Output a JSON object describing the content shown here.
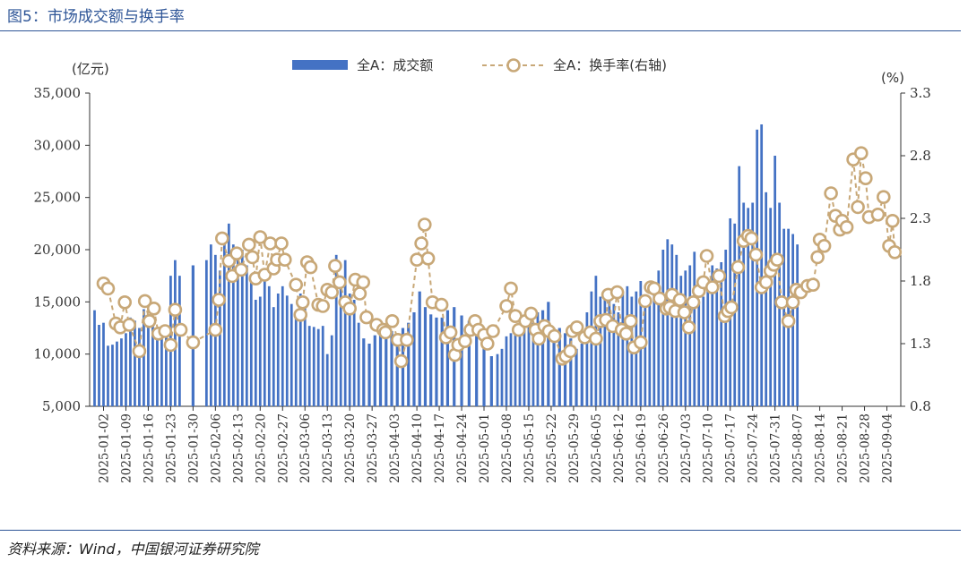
{
  "header": {
    "title": "图5：市场成交额与换手率"
  },
  "footer": {
    "source": "资料来源：Wind，中国银河证券研究院"
  },
  "colors": {
    "bar": "#4472c4",
    "line": "#c8a878",
    "marker_fill": "#ffffff",
    "axis": "#333333",
    "rule": "#2e5597"
  },
  "chart_data": {
    "type": "bar",
    "title": "",
    "left_unit": "(亿元)",
    "right_unit": "(%)",
    "legend": {
      "placement": "top-center",
      "bar_label": "全A：成交额",
      "line_label": "全A：换手率(右轴)"
    },
    "y_left": {
      "min": 5000,
      "max": 35000,
      "ticks": [
        "5,000",
        "10,000",
        "15,000",
        "20,000",
        "25,000",
        "30,000",
        "35,000"
      ]
    },
    "y_right": {
      "min": 0.8,
      "max": 3.3,
      "ticks": [
        "0.8",
        "1.3",
        "1.8",
        "2.3",
        "2.8",
        "3.3"
      ]
    },
    "x_ticks": [
      "2025-01-02",
      "2025-01-09",
      "2025-01-16",
      "2025-01-23",
      "2025-01-30",
      "2025-02-06",
      "2025-02-13",
      "2025-02-20",
      "2025-02-27",
      "2025-03-06",
      "2025-03-13",
      "2025-03-20",
      "2025-03-27",
      "2025-04-03",
      "2025-04-10",
      "2025-04-17",
      "2025-04-24",
      "2025-05-01",
      "2025-05-08",
      "2025-05-15",
      "2025-05-22",
      "2025-05-29",
      "2025-06-05",
      "2025-06-12",
      "2025-06-19",
      "2025-06-26",
      "2025-07-03",
      "2025-07-10",
      "2025-07-17",
      "2025-07-24",
      "2025-07-31",
      "2025-08-07",
      "2025-08-14",
      "2025-08-21",
      "2025-08-28",
      "2025-09-04"
    ],
    "series": [
      {
        "name": "全A：成交额",
        "kind": "bar",
        "axis": "left",
        "values": [
          14200,
          12800,
          13000,
          10800,
          10900,
          11200,
          11500,
          12000,
          13500,
          13200,
          12500,
          14300,
          13800,
          13200,
          12200,
          12500,
          12000,
          17500,
          19000,
          17500,
          18500,
          19000,
          20500,
          19500,
          18000,
          21500,
          22500,
          20500,
          19500,
          20000,
          18500,
          17000,
          15200,
          15500,
          17500,
          16500,
          14500,
          15800,
          16500,
          15600,
          14800,
          14000,
          15800,
          14700,
          12700,
          12600,
          12400,
          12700,
          10000,
          11800,
          19500,
          17500,
          19000,
          15800,
          15200,
          13000,
          11500,
          11000,
          11800,
          12500,
          12800,
          12200,
          12000,
          12500,
          13000,
          14000,
          16000,
          14500,
          13800,
          13500,
          13500,
          14200,
          14500,
          13700,
          13200,
          13200,
          12500,
          9800,
          10000,
          10500,
          11700,
          12000,
          12200,
          12400,
          12300,
          13000,
          13000,
          14000,
          14200,
          15000,
          12500,
          12500,
          12000,
          11500,
          10500,
          11000,
          14000,
          16000,
          17500,
          15500,
          15500,
          16000,
          14800,
          14000,
          16000,
          16500,
          15500,
          16000,
          17000,
          14500,
          15500,
          15800,
          18000,
          20000,
          21000,
          20500,
          19500,
          17500,
          18000,
          18500,
          19800,
          15000,
          15500,
          17000,
          18500,
          18200,
          18800,
          20000,
          23000,
          22500,
          28000,
          24500,
          24000,
          24500,
          31500,
          32000,
          25500,
          24000,
          29000,
          24500,
          22000,
          22000,
          21500,
          20500
        ],
        "tick_start_index": [
          0,
          5,
          10,
          15,
          20,
          21,
          26,
          31,
          36,
          41,
          46,
          51,
          56,
          60,
          64,
          68,
          72,
          75,
          78,
          83,
          88,
          92,
          96,
          101,
          106,
          111,
          116,
          121,
          126,
          131,
          136,
          141,
          146,
          151,
          156,
          161
        ]
      },
      {
        "name": "全A：换手率(右轴)",
        "kind": "line",
        "axis": "right",
        "points": [
          [
            0.0,
            1.78
          ],
          [
            0.2,
            1.74
          ],
          [
            0.55,
            1.46
          ],
          [
            0.75,
            1.43
          ],
          [
            0.95,
            1.63
          ],
          [
            1.15,
            1.45
          ],
          [
            1.6,
            1.24
          ],
          [
            1.85,
            1.64
          ],
          [
            2.05,
            1.48
          ],
          [
            2.25,
            1.58
          ],
          [
            2.45,
            1.38
          ],
          [
            2.75,
            1.4
          ],
          [
            3.0,
            1.29
          ],
          [
            3.2,
            1.57
          ],
          [
            3.45,
            1.41
          ],
          [
            4.0,
            1.31
          ],
          [
            5.0,
            1.41
          ],
          [
            5.15,
            1.65
          ],
          [
            5.3,
            2.14
          ],
          [
            5.6,
            1.96
          ],
          [
            5.75,
            1.84
          ],
          [
            5.95,
            2.02
          ],
          [
            6.15,
            1.89
          ],
          [
            6.5,
            2.09
          ],
          [
            6.65,
            1.99
          ],
          [
            6.8,
            1.82
          ],
          [
            7.0,
            2.15
          ],
          [
            7.2,
            1.85
          ],
          [
            7.45,
            2.1
          ],
          [
            7.6,
            1.9
          ],
          [
            7.75,
            1.97
          ],
          [
            7.95,
            2.1
          ],
          [
            8.1,
            1.97
          ],
          [
            8.6,
            1.77
          ],
          [
            8.8,
            1.53
          ],
          [
            8.9,
            1.63
          ],
          [
            9.1,
            1.95
          ],
          [
            9.25,
            1.91
          ],
          [
            9.6,
            1.61
          ],
          [
            9.8,
            1.6
          ],
          [
            10.0,
            1.73
          ],
          [
            10.2,
            1.71
          ],
          [
            10.35,
            1.92
          ],
          [
            10.55,
            1.79
          ],
          [
            10.8,
            1.63
          ],
          [
            11.0,
            1.58
          ],
          [
            11.25,
            1.81
          ],
          [
            11.45,
            1.7
          ],
          [
            11.6,
            1.79
          ],
          [
            11.75,
            1.51
          ],
          [
            12.2,
            1.45
          ],
          [
            12.5,
            1.41
          ],
          [
            12.6,
            1.39
          ],
          [
            12.9,
            1.48
          ],
          [
            13.15,
            1.33
          ],
          [
            13.3,
            1.16
          ],
          [
            13.55,
            1.33
          ],
          [
            14.0,
            1.97
          ],
          [
            14.2,
            2.1
          ],
          [
            14.35,
            2.25
          ],
          [
            14.5,
            1.98
          ],
          [
            14.7,
            1.63
          ],
          [
            15.1,
            1.61
          ],
          [
            15.3,
            1.35
          ],
          [
            15.5,
            1.39
          ],
          [
            15.7,
            1.21
          ],
          [
            15.85,
            1.29
          ],
          [
            16.15,
            1.32
          ],
          [
            16.4,
            1.41
          ],
          [
            16.6,
            1.48
          ],
          [
            16.75,
            1.41
          ],
          [
            17.0,
            1.37
          ],
          [
            17.15,
            1.3
          ],
          [
            17.4,
            1.4
          ],
          [
            18.0,
            1.6
          ],
          [
            18.2,
            1.74
          ],
          [
            18.4,
            1.52
          ],
          [
            18.55,
            1.41
          ],
          [
            18.85,
            1.48
          ],
          [
            19.1,
            1.54
          ],
          [
            19.3,
            1.41
          ],
          [
            19.45,
            1.34
          ],
          [
            19.7,
            1.44
          ],
          [
            19.9,
            1.4
          ],
          [
            20.15,
            1.36
          ],
          [
            20.5,
            1.18
          ],
          [
            20.65,
            1.2
          ],
          [
            20.85,
            1.24
          ],
          [
            20.95,
            1.4
          ],
          [
            21.15,
            1.43
          ],
          [
            21.5,
            1.35
          ],
          [
            21.75,
            1.39
          ],
          [
            22.0,
            1.34
          ],
          [
            22.2,
            1.48
          ],
          [
            22.45,
            1.49
          ],
          [
            22.55,
            1.69
          ],
          [
            22.75,
            1.44
          ],
          [
            22.95,
            1.71
          ],
          [
            23.15,
            1.41
          ],
          [
            23.35,
            1.38
          ],
          [
            23.55,
            1.48
          ],
          [
            23.7,
            1.27
          ],
          [
            24.0,
            1.31
          ],
          [
            24.2,
            1.64
          ],
          [
            24.45,
            1.75
          ],
          [
            24.6,
            1.74
          ],
          [
            24.85,
            1.66
          ],
          [
            25.15,
            1.58
          ],
          [
            25.3,
            1.59
          ],
          [
            25.4,
            1.69
          ],
          [
            25.55,
            1.56
          ],
          [
            25.75,
            1.65
          ],
          [
            25.95,
            1.55
          ],
          [
            26.15,
            1.43
          ],
          [
            26.35,
            1.63
          ],
          [
            26.6,
            1.72
          ],
          [
            26.8,
            1.79
          ],
          [
            26.95,
            2.0
          ],
          [
            27.2,
            1.75
          ],
          [
            27.5,
            1.84
          ],
          [
            27.75,
            1.52
          ],
          [
            27.9,
            1.56
          ],
          [
            28.05,
            1.59
          ],
          [
            28.35,
            1.91
          ],
          [
            28.6,
            2.12
          ],
          [
            28.8,
            2.16
          ],
          [
            28.95,
            2.14
          ],
          [
            29.15,
            2.01
          ],
          [
            29.4,
            1.75
          ],
          [
            29.6,
            1.79
          ],
          [
            29.8,
            1.88
          ],
          [
            29.95,
            1.93
          ],
          [
            30.1,
            1.97
          ],
          [
            30.3,
            1.63
          ],
          [
            30.6,
            1.48
          ],
          [
            30.8,
            1.63
          ],
          [
            30.95,
            1.73
          ],
          [
            31.15,
            1.71
          ],
          [
            31.45,
            1.76
          ],
          [
            31.7,
            1.77
          ],
          [
            31.9,
            1.99
          ],
          [
            32.0,
            2.13
          ],
          [
            32.2,
            2.08
          ],
          [
            32.5,
            2.5
          ],
          [
            32.7,
            2.32
          ],
          [
            32.9,
            2.21
          ],
          [
            33.0,
            2.28
          ],
          [
            33.2,
            2.23
          ],
          [
            33.5,
            2.77
          ],
          [
            33.7,
            2.39
          ],
          [
            33.85,
            2.82
          ],
          [
            34.05,
            2.62
          ],
          [
            34.2,
            2.31
          ],
          [
            34.6,
            2.33
          ],
          [
            34.85,
            2.47
          ],
          [
            35.1,
            2.08
          ],
          [
            35.25,
            2.28
          ],
          [
            35.35,
            2.03
          ]
        ]
      }
    ],
    "grid": false
  }
}
